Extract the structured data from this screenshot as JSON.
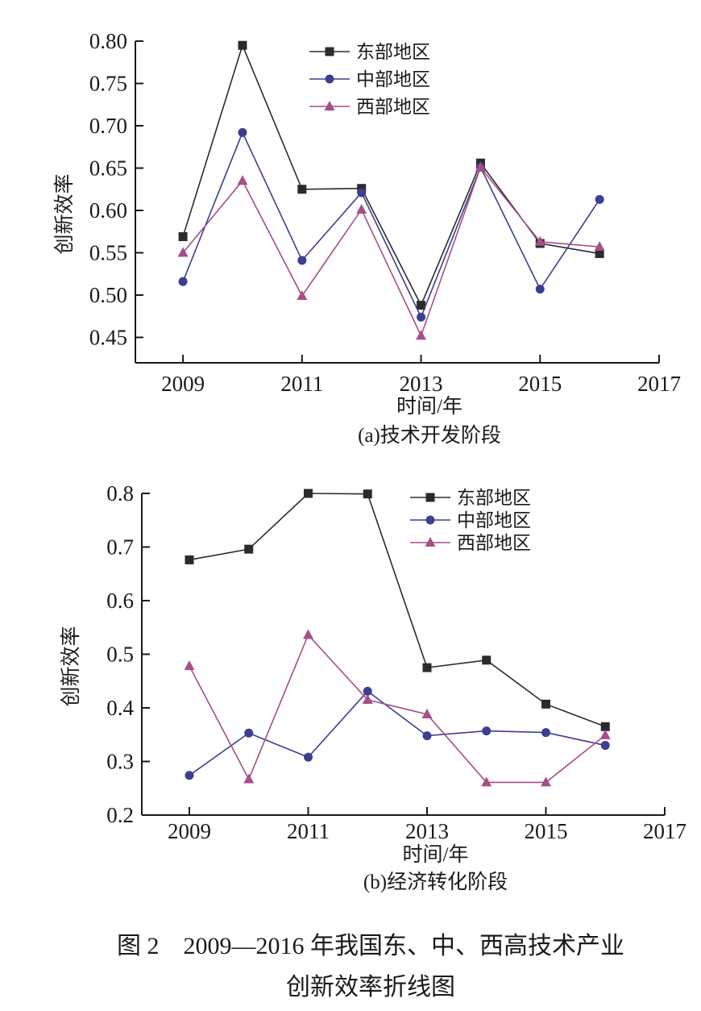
{
  "colors": {
    "east": "#2b2b2b",
    "central": "#3c3f8f",
    "west": "#a54f87",
    "axis": "#1a1a1a"
  },
  "legend_labels": [
    "东部地区",
    "中部地区",
    "西部地区"
  ],
  "figure_caption": {
    "line1": "图 2　2009—2016 年我国东、中、西高技术产业",
    "line2": "创新效率折线图"
  },
  "chart_data": [
    {
      "type": "line",
      "subtitle": "(a)技术开发阶段",
      "xlabel": "时间/年",
      "ylabel": "创新效率",
      "xlim": [
        2008.2,
        2017
      ],
      "ylim": [
        0.42,
        0.8
      ],
      "xticks": [
        2009,
        2011,
        2013,
        2015,
        2017
      ],
      "yticks": [
        0.45,
        0.5,
        0.55,
        0.6,
        0.65,
        0.7,
        0.75,
        0.8
      ],
      "ytick_labels": [
        "0.45",
        "0.50",
        "0.55",
        "0.60",
        "0.65",
        "0.70",
        "0.75",
        "0.80"
      ],
      "legend_position": "top-center",
      "x": [
        2009,
        2010,
        2011,
        2012,
        2013,
        2014,
        2015,
        2016
      ],
      "series": [
        {
          "name": "东部地区",
          "marker": "square",
          "values": [
            0.569,
            0.795,
            0.625,
            0.626,
            0.488,
            0.656,
            0.561,
            0.549
          ]
        },
        {
          "name": "中部地区",
          "marker": "circle",
          "values": [
            0.516,
            0.692,
            0.541,
            0.621,
            0.474,
            0.651,
            0.507,
            0.613
          ]
        },
        {
          "name": "西部地区",
          "marker": "triangle",
          "values": [
            0.55,
            0.635,
            0.499,
            0.601,
            0.452,
            0.651,
            0.563,
            0.557
          ]
        }
      ]
    },
    {
      "type": "line",
      "subtitle": "(b)经济转化阶段",
      "xlabel": "时间/年",
      "ylabel": "创新效率",
      "xlim": [
        2008.2,
        2017
      ],
      "ylim": [
        0.2,
        0.8
      ],
      "xticks": [
        2009,
        2011,
        2013,
        2015,
        2017
      ],
      "yticks": [
        0.2,
        0.3,
        0.4,
        0.5,
        0.6,
        0.7,
        0.8
      ],
      "ytick_labels": [
        "0.2",
        "0.3",
        "0.4",
        "0.5",
        "0.6",
        "0.7",
        "0.8"
      ],
      "legend_position": "top-center",
      "x": [
        2009,
        2010,
        2011,
        2012,
        2013,
        2014,
        2015,
        2016
      ],
      "series": [
        {
          "name": "东部地区",
          "marker": "square",
          "values": [
            0.676,
            0.696,
            0.8,
            0.799,
            0.475,
            0.489,
            0.407,
            0.365
          ]
        },
        {
          "name": "中部地区",
          "marker": "circle",
          "values": [
            0.274,
            0.353,
            0.308,
            0.431,
            0.348,
            0.357,
            0.354,
            0.33
          ]
        },
        {
          "name": "西部地区",
          "marker": "triangle",
          "values": [
            0.478,
            0.267,
            0.536,
            0.415,
            0.388,
            0.261,
            0.261,
            0.349
          ]
        }
      ]
    }
  ]
}
